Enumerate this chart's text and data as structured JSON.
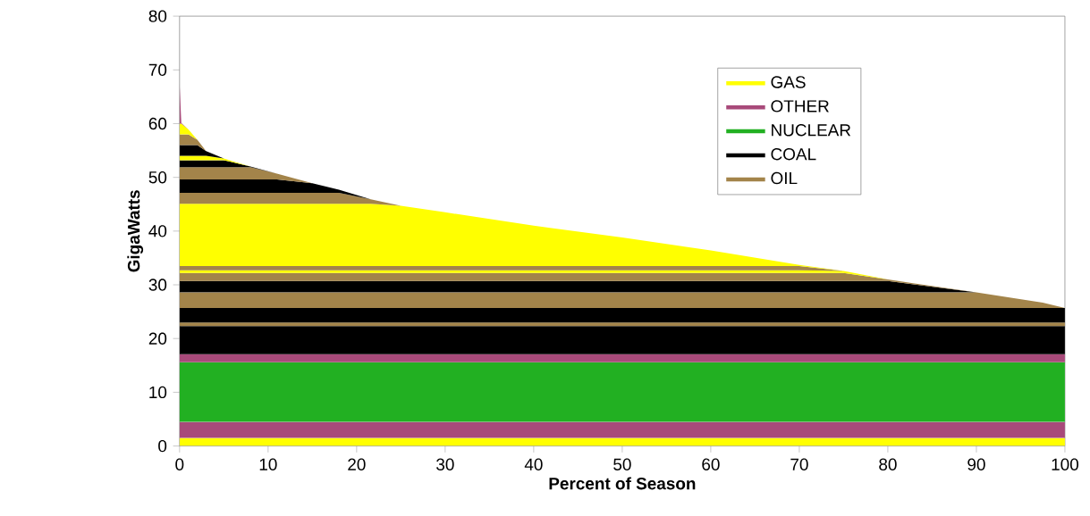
{
  "chart_data": {
    "type": "area",
    "stacked": true,
    "xlabel": "Percent of Season",
    "ylabel": "GigaWatts",
    "xlim": [
      0,
      100
    ],
    "xticks": [
      0,
      10,
      20,
      30,
      40,
      50,
      60,
      70,
      80,
      90,
      100
    ],
    "ylim": [
      0,
      80
    ],
    "yticks": [
      0,
      10,
      20,
      30,
      40,
      50,
      60,
      70,
      80
    ],
    "legend": "top right",
    "grid": false,
    "x": [
      0,
      0.2,
      1,
      2,
      3,
      5,
      8,
      11,
      15,
      18,
      21.6,
      25,
      30,
      40,
      50,
      60,
      70,
      75,
      80,
      90,
      97.5,
      100
    ],
    "series": [
      {
        "name": "GAS",
        "color": "#ffff00",
        "values": [
          1.5,
          1.5,
          1.5,
          1.5,
          1.5,
          1.5,
          1.5,
          1.5,
          1.5,
          1.5,
          1.5,
          1.5,
          1.5,
          1.5,
          1.5,
          1.5,
          1.5,
          1.5,
          1.5,
          1.5,
          1.5,
          1.5
        ]
      },
      {
        "name": "OTHER",
        "color": "#a84a7a",
        "values": [
          3,
          3,
          3,
          3,
          3,
          3,
          3,
          3,
          3,
          3,
          3,
          3,
          3,
          3,
          3,
          3,
          3,
          3,
          3,
          3,
          3,
          3
        ]
      },
      {
        "name": "NUCLEAR",
        "color": "#22b022",
        "values": [
          11.1,
          11.1,
          11.1,
          11.1,
          11.1,
          11.1,
          11.1,
          11.1,
          11.1,
          11.1,
          11.1,
          11.1,
          11.1,
          11.1,
          11.1,
          11.1,
          11.1,
          11.1,
          11.1,
          11.1,
          11.1,
          11.1
        ]
      },
      {
        "color": "#a84a7a",
        "values": [
          1.5,
          1.5,
          1.5,
          1.5,
          1.5,
          1.5,
          1.5,
          1.5,
          1.5,
          1.5,
          1.5,
          1.5,
          1.5,
          1.5,
          1.5,
          1.5,
          1.5,
          1.5,
          1.5,
          1.5,
          1.5,
          1.5
        ]
      },
      {
        "name": "COAL",
        "color": "#000000",
        "values": [
          5.2,
          5.2,
          5.2,
          5.2,
          5.2,
          5.2,
          5.2,
          5.2,
          5.2,
          5.2,
          5.2,
          5.2,
          5.2,
          5.2,
          5.2,
          5.2,
          5.2,
          5.2,
          5.2,
          5.2,
          5.2,
          5.2
        ]
      },
      {
        "name": "OIL",
        "color": "#a3844a",
        "values": [
          0.7,
          0.7,
          0.7,
          0.7,
          0.7,
          0.7,
          0.7,
          0.7,
          0.7,
          0.7,
          0.7,
          0.7,
          0.7,
          0.7,
          0.7,
          0.7,
          0.7,
          0.7,
          0.7,
          0.7,
          0.7,
          0.7
        ]
      },
      {
        "color": "#000000",
        "values": [
          2.7,
          2.7,
          2.7,
          2.7,
          2.7,
          2.7,
          2.7,
          2.7,
          2.7,
          2.7,
          2.7,
          2.7,
          2.7,
          2.7,
          2.7,
          2.7,
          2.7,
          2.7,
          2.7,
          2.7,
          2.7,
          2.7
        ]
      },
      {
        "color": "#a3844a",
        "values": [
          2.9,
          2.9,
          2.9,
          2.9,
          2.9,
          2.9,
          2.9,
          2.9,
          2.9,
          2.9,
          2.9,
          2.9,
          2.9,
          2.9,
          2.9,
          2.9,
          2.9,
          2.9,
          2.9,
          2.9,
          1.0,
          0
        ]
      },
      {
        "color": "#000000",
        "values": [
          2.1,
          2.1,
          2.1,
          2.1,
          2.1,
          2.1,
          2.1,
          2.1,
          2.1,
          2.1,
          2.1,
          2.1,
          2.1,
          2.1,
          2.1,
          2.1,
          2.1,
          2.1,
          2.1,
          0,
          null,
          null
        ]
      },
      {
        "color": "#a3844a",
        "values": [
          1.5,
          1.5,
          1.5,
          1.5,
          1.5,
          1.5,
          1.5,
          1.5,
          1.5,
          1.5,
          1.5,
          1.5,
          1.5,
          1.5,
          1.5,
          1.5,
          1.5,
          1.5,
          0.3,
          0,
          null,
          null
        ]
      },
      {
        "color": "#ffff00",
        "values": [
          0.5,
          0.5,
          0.5,
          0.5,
          0.5,
          0.5,
          0.5,
          0.5,
          0.5,
          0.5,
          0.5,
          0.5,
          0.5,
          0.5,
          0.5,
          0.5,
          0.5,
          0.4,
          0,
          null,
          null,
          null
        ]
      },
      {
        "color": "#a3844a",
        "values": [
          0.8,
          0.8,
          0.8,
          0.8,
          0.8,
          0.8,
          0.8,
          0.8,
          0.8,
          0.8,
          0.8,
          0.8,
          0.8,
          0.8,
          0.8,
          0.8,
          0.8,
          0,
          null,
          null,
          null,
          null
        ]
      },
      {
        "color": "#ffff00",
        "values": [
          11.6,
          11.6,
          11.6,
          11.6,
          11.6,
          11.6,
          11.6,
          11.6,
          11.6,
          11.6,
          11.6,
          11.2,
          10.0,
          7.5,
          5.3,
          2.9,
          0.2,
          0,
          null,
          null,
          null,
          null
        ]
      },
      {
        "color": "#a3844a",
        "values": [
          2.0,
          2.0,
          2.0,
          2.0,
          2.0,
          2.0,
          2.0,
          2.0,
          2.0,
          2.0,
          0.8,
          0,
          null,
          null,
          null,
          null,
          null,
          null,
          null,
          null,
          null,
          null
        ]
      },
      {
        "color": "#000000",
        "values": [
          2.5,
          2.5,
          2.5,
          2.5,
          2.5,
          2.5,
          2.5,
          2.5,
          1.8,
          0.6,
          0,
          null,
          null,
          null,
          null,
          null,
          null,
          null,
          null,
          null,
          null,
          null
        ]
      },
      {
        "color": "#a3844a",
        "values": [
          2.3,
          2.3,
          2.3,
          2.3,
          2.3,
          2.3,
          2.3,
          1.1,
          0,
          null,
          null,
          null,
          null,
          null,
          null,
          null,
          null,
          null,
          null,
          null,
          null,
          null
        ]
      },
      {
        "color": "#000000",
        "values": [
          1.3,
          1.3,
          1.3,
          1.3,
          1.3,
          1.3,
          0.1,
          0,
          null,
          null,
          null,
          null,
          null,
          null,
          null,
          null,
          null,
          null,
          null,
          null,
          null,
          null
        ]
      },
      {
        "color": "#ffff00",
        "values": [
          0.8,
          0.8,
          0.8,
          0.8,
          0.8,
          0.3,
          0,
          null,
          null,
          null,
          null,
          null,
          null,
          null,
          null,
          null,
          null,
          null,
          null,
          null,
          null,
          null
        ]
      },
      {
        "color": "#000000",
        "values": [
          2,
          2,
          2,
          2,
          0.9,
          0,
          null,
          null,
          null,
          null,
          null,
          null,
          null,
          null,
          null,
          null,
          null,
          null,
          null,
          null,
          null,
          null
        ]
      },
      {
        "color": "#a3844a",
        "values": [
          2,
          2,
          2,
          1.0,
          0,
          null,
          null,
          null,
          null,
          null,
          null,
          null,
          null,
          null,
          null,
          null,
          null,
          null,
          null,
          null,
          null,
          null
        ]
      },
      {
        "color": "#ffff00",
        "values": [
          2,
          2,
          0.9,
          0,
          null,
          null,
          null,
          null,
          null,
          null,
          null,
          null,
          null,
          null,
          null,
          null,
          null,
          null,
          null,
          null,
          null,
          null
        ]
      },
      {
        "color": "#a84a7a",
        "values": [
          7.5,
          0.1,
          0,
          null,
          null,
          null,
          null,
          null,
          null,
          null,
          null,
          null,
          null,
          null,
          null,
          null,
          null,
          null,
          null,
          null,
          null,
          null
        ]
      }
    ]
  }
}
